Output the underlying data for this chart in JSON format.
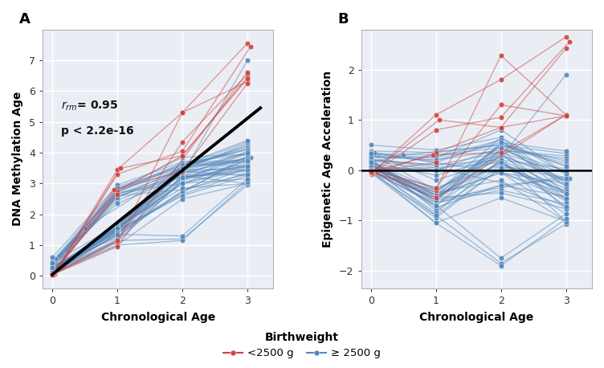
{
  "panel_A_label": "A",
  "panel_B_label": "B",
  "xlabel": "Chronological Age",
  "ylabel_A": "DNA Methylation Age",
  "ylabel_B": "Epigenetic Age Acceleration",
  "legend_title": "Birthweight",
  "legend_low": "<2500 g",
  "legend_high": "≥ 2500 g",
  "color_low": "#CC4444",
  "color_high": "#5588BB",
  "regression_color": "#000000",
  "background_color": "#EAEEF4",
  "grid_color": "#FFFFFF",
  "fig_facecolor": "#FFFFFF",
  "low_bw_subjects": [
    {
      "id": "L1",
      "ages": [
        0.02,
        1.0,
        2.0,
        3.0
      ],
      "dna_age": [
        0.05,
        3.45,
        5.3,
        7.55
      ],
      "eaa": [
        -0.05,
        1.1,
        1.8,
        2.65
      ]
    },
    {
      "id": "L2",
      "ages": [
        0.01,
        1.0,
        2.0,
        3.0
      ],
      "dna_age": [
        0.08,
        2.75,
        3.9,
        6.45
      ],
      "eaa": [
        -0.08,
        0.35,
        0.85,
        2.42
      ]
    },
    {
      "id": "L3",
      "ages": [
        0.03,
        1.0,
        2.0,
        3.05
      ],
      "dna_age": [
        0.06,
        3.3,
        4.05,
        7.45
      ],
      "eaa": [
        -0.06,
        0.8,
        1.05,
        2.55
      ]
    },
    {
      "id": "L4",
      "ages": [
        0.0,
        1.0,
        2.0,
        3.0
      ],
      "dna_age": [
        0.04,
        1.1,
        5.3,
        6.3
      ],
      "eaa": [
        -0.04,
        -0.4,
        2.28,
        1.1
      ]
    },
    {
      "id": "L5",
      "ages": [
        0.01,
        0.95,
        2.0,
        3.0
      ],
      "dna_age": [
        0.03,
        2.8,
        3.4,
        6.25
      ],
      "eaa": [
        -0.03,
        0.3,
        0.35,
        1.1
      ]
    },
    {
      "id": "L6",
      "ages": [
        0.02,
        1.0,
        2.0,
        3.0
      ],
      "dna_age": [
        0.1,
        1.15,
        4.35,
        6.55
      ],
      "eaa": [
        0.0,
        -0.35,
        1.3,
        1.08
      ]
    },
    {
      "id": "L7",
      "ages": [
        0.0,
        1.0,
        3.0
      ],
      "dna_age": [
        0.04,
        0.95,
        6.6
      ],
      "eaa": [
        -0.02,
        -0.55,
        1.1
      ]
    },
    {
      "id": "L8",
      "ages": [
        0.01,
        1.05,
        2.0,
        3.0
      ],
      "dna_age": [
        0.03,
        3.5,
        3.9,
        6.4
      ],
      "eaa": [
        -0.05,
        1.0,
        0.85,
        1.08
      ]
    },
    {
      "id": "L9",
      "ages": [
        0.0,
        1.0
      ],
      "dna_age": [
        0.05,
        2.65
      ],
      "eaa": [
        -0.03,
        0.15
      ]
    }
  ],
  "high_bw_subjects": [
    {
      "id": "H1",
      "ages": [
        0.0,
        0.5,
        2.0,
        3.0
      ],
      "dna_age": [
        0.35,
        1.55,
        3.55,
        4.1
      ],
      "eaa": [
        0.15,
        0.3,
        0.5,
        0.08
      ]
    },
    {
      "id": "H2",
      "ages": [
        0.05,
        1.0,
        2.0,
        3.0
      ],
      "dna_age": [
        0.55,
        2.7,
        3.65,
        3.7
      ],
      "eaa": [
        0.35,
        0.15,
        0.6,
        -0.32
      ]
    },
    {
      "id": "H3",
      "ages": [
        0.0,
        1.0,
        2.0,
        3.0
      ],
      "dna_age": [
        0.1,
        1.5,
        3.2,
        3.55
      ],
      "eaa": [
        0.0,
        -0.55,
        0.15,
        -0.47
      ]
    },
    {
      "id": "H4",
      "ages": [
        0.0,
        1.0,
        2.0,
        3.0
      ],
      "dna_age": [
        0.2,
        1.35,
        3.45,
        3.45
      ],
      "eaa": [
        0.1,
        -0.7,
        0.4,
        -0.57
      ]
    },
    {
      "id": "H5",
      "ages": [
        0.02,
        1.0,
        2.0,
        3.0
      ],
      "dna_age": [
        0.15,
        1.45,
        3.35,
        3.8
      ],
      "eaa": [
        0.05,
        -0.6,
        0.3,
        -0.22
      ]
    },
    {
      "id": "H6",
      "ages": [
        0.0,
        1.0,
        2.0,
        3.0
      ],
      "dna_age": [
        0.08,
        1.55,
        3.55,
        4.15
      ],
      "eaa": [
        -0.02,
        -0.5,
        0.5,
        0.13
      ]
    },
    {
      "id": "H7",
      "ages": [
        0.0,
        1.0,
        2.0,
        3.0
      ],
      "dna_age": [
        0.25,
        2.45,
        3.3,
        7.0
      ],
      "eaa": [
        0.15,
        -0.1,
        0.25,
        1.9
      ]
    },
    {
      "id": "H8",
      "ages": [
        0.0,
        1.0,
        2.0,
        3.0
      ],
      "dna_age": [
        0.18,
        1.6,
        3.7,
        3.75
      ],
      "eaa": [
        0.08,
        -0.45,
        0.65,
        -0.27
      ]
    },
    {
      "id": "H9",
      "ages": [
        0.0,
        1.0,
        2.0,
        3.0
      ],
      "dna_age": [
        0.12,
        1.7,
        3.15,
        3.85
      ],
      "eaa": [
        0.02,
        -0.35,
        0.1,
        -0.17
      ]
    },
    {
      "id": "H10",
      "ages": [
        0.0,
        1.0,
        2.0,
        3.0
      ],
      "dna_age": [
        0.3,
        2.65,
        3.25,
        4.05
      ],
      "eaa": [
        0.2,
        0.1,
        0.2,
        0.03
      ]
    },
    {
      "id": "H11",
      "ages": [
        0.0,
        1.0,
        2.0,
        3.05
      ],
      "dna_age": [
        0.22,
        1.3,
        2.75,
        3.85
      ],
      "eaa": [
        0.12,
        -0.75,
        -0.3,
        -0.17
      ]
    },
    {
      "id": "H12",
      "ages": [
        0.0,
        1.0,
        2.0,
        3.0
      ],
      "dna_age": [
        0.05,
        1.15,
        3.1,
        4.0
      ],
      "eaa": [
        -0.05,
        -0.9,
        0.05,
        -0.02
      ]
    },
    {
      "id": "H13",
      "ages": [
        0.0,
        1.0,
        2.0,
        3.0
      ],
      "dna_age": [
        0.17,
        2.55,
        3.5,
        3.8
      ],
      "eaa": [
        0.07,
        0.0,
        0.45,
        -0.22
      ]
    },
    {
      "id": "H14",
      "ages": [
        0.0,
        1.0,
        2.0,
        3.0
      ],
      "dna_age": [
        0.28,
        1.4,
        2.65,
        3.35
      ],
      "eaa": [
        0.18,
        -0.65,
        -0.4,
        -0.67
      ]
    },
    {
      "id": "H15",
      "ages": [
        0.0,
        1.0,
        2.0,
        3.0
      ],
      "dna_age": [
        0.42,
        1.65,
        3.35,
        3.55
      ],
      "eaa": [
        0.32,
        -0.4,
        0.3,
        -0.47
      ]
    },
    {
      "id": "H16",
      "ages": [
        0.0,
        1.0,
        2.0,
        3.0
      ],
      "dna_age": [
        0.38,
        2.75,
        3.6,
        4.1
      ],
      "eaa": [
        0.28,
        0.2,
        0.55,
        0.08
      ]
    },
    {
      "id": "H17",
      "ages": [
        0.0,
        1.0,
        2.0,
        3.0
      ],
      "dna_age": [
        0.09,
        1.35,
        3.25,
        3.0
      ],
      "eaa": [
        -0.01,
        -0.7,
        0.2,
        -1.02
      ]
    },
    {
      "id": "H18",
      "ages": [
        0.0,
        1.0,
        2.0,
        3.0
      ],
      "dna_age": [
        0.14,
        1.5,
        3.4,
        3.25
      ],
      "eaa": [
        0.04,
        -0.55,
        0.35,
        -0.77
      ]
    },
    {
      "id": "H19",
      "ages": [
        0.0,
        1.0,
        2.0,
        3.0
      ],
      "dna_age": [
        0.48,
        2.9,
        3.55,
        4.2
      ],
      "eaa": [
        0.38,
        0.35,
        0.5,
        0.18
      ]
    },
    {
      "id": "H20",
      "ages": [
        0.0,
        1.0,
        2.0,
        3.0
      ],
      "dna_age": [
        0.33,
        1.25,
        3.15,
        3.6
      ],
      "eaa": [
        0.23,
        -0.8,
        0.1,
        -0.42
      ]
    },
    {
      "id": "H21",
      "ages": [
        0.0,
        1.0,
        2.0,
        3.0
      ],
      "dna_age": [
        0.16,
        1.45,
        2.7,
        3.9
      ],
      "eaa": [
        0.06,
        -0.6,
        -0.35,
        -0.12
      ]
    },
    {
      "id": "H22",
      "ages": [
        0.0,
        1.0,
        2.0,
        3.0
      ],
      "dna_age": [
        0.26,
        1.55,
        3.45,
        4.25
      ],
      "eaa": [
        0.16,
        -0.5,
        0.4,
        0.23
      ]
    },
    {
      "id": "H23",
      "ages": [
        0.0,
        1.0,
        2.0,
        3.0
      ],
      "dna_age": [
        0.11,
        2.6,
        2.8,
        3.3
      ],
      "eaa": [
        0.01,
        0.05,
        -0.25,
        -0.72
      ]
    },
    {
      "id": "H24",
      "ages": [
        0.0,
        1.0,
        2.0,
        3.0
      ],
      "dna_age": [
        0.19,
        1.6,
        3.55,
        3.7
      ],
      "eaa": [
        0.09,
        -0.45,
        0.5,
        -0.32
      ]
    },
    {
      "id": "H25",
      "ages": [
        0.0,
        1.0,
        2.0,
        3.0
      ],
      "dna_age": [
        0.44,
        2.7,
        3.0,
        3.15
      ],
      "eaa": [
        0.34,
        0.15,
        -0.05,
        -0.87
      ]
    },
    {
      "id": "H26",
      "ages": [
        0.0,
        1.0,
        2.0,
        3.0
      ],
      "dna_age": [
        0.13,
        1.2,
        3.25,
        3.65
      ],
      "eaa": [
        0.03,
        -0.85,
        0.2,
        -0.37
      ]
    },
    {
      "id": "H27",
      "ages": [
        0.0,
        1.0,
        2.0,
        3.0
      ],
      "dna_age": [
        0.36,
        2.8,
        3.85,
        3.95
      ],
      "eaa": [
        0.26,
        0.25,
        0.8,
        -0.07
      ]
    },
    {
      "id": "H28",
      "ages": [
        0.0,
        1.0,
        2.0,
        3.0
      ],
      "dna_age": [
        0.21,
        1.5,
        2.6,
        3.25
      ],
      "eaa": [
        0.11,
        -0.55,
        -0.45,
        -0.77
      ]
    },
    {
      "id": "H29",
      "ages": [
        0.0,
        1.0,
        2.0,
        3.0
      ],
      "dna_age": [
        0.07,
        1.4,
        2.75,
        3.5
      ],
      "eaa": [
        -0.03,
        -0.65,
        -0.3,
        -0.52
      ]
    },
    {
      "id": "H30",
      "ages": [
        0.0,
        1.0,
        2.0,
        3.0
      ],
      "dna_age": [
        0.1,
        1.0,
        2.5,
        3.0
      ],
      "eaa": [
        0.0,
        -1.05,
        -0.55,
        -1.02
      ]
    },
    {
      "id": "H31",
      "ages": [
        0.0,
        1.0,
        2.0,
        3.0
      ],
      "dna_age": [
        0.08,
        1.1,
        3.1,
        3.6
      ],
      "eaa": [
        -0.02,
        -0.95,
        0.05,
        -0.42
      ]
    },
    {
      "id": "H32",
      "ages": [
        0.0,
        1.0,
        2.0,
        3.0
      ],
      "dna_age": [
        0.6,
        2.95,
        3.7,
        3.95
      ],
      "eaa": [
        0.5,
        0.4,
        0.65,
        -0.07
      ]
    },
    {
      "id": "H33",
      "ages": [
        0.0,
        1.0,
        2.0,
        3.0
      ],
      "dna_age": [
        0.23,
        1.55,
        3.0,
        3.45
      ],
      "eaa": [
        0.13,
        -0.5,
        -0.05,
        -0.57
      ]
    },
    {
      "id": "H34",
      "ages": [
        0.0,
        1.0,
        2.0,
        3.0
      ],
      "dna_age": [
        0.32,
        2.6,
        3.2,
        3.4
      ],
      "eaa": [
        0.22,
        0.05,
        0.15,
        -0.62
      ]
    },
    {
      "id": "H35",
      "ages": [
        0.0,
        1.0,
        2.0,
        3.0
      ],
      "dna_age": [
        0.27,
        1.65,
        3.45,
        4.3
      ],
      "eaa": [
        0.17,
        -0.4,
        0.4,
        0.28
      ]
    },
    {
      "id": "H36",
      "ages": [
        0.0,
        1.0,
        2.0,
        3.0
      ],
      "dna_age": [
        0.15,
        1.15,
        1.2,
        2.95
      ],
      "eaa": [
        0.05,
        -0.9,
        -1.85,
        -1.07
      ]
    },
    {
      "id": "H37",
      "ages": [
        0.0,
        1.0,
        2.0,
        3.0
      ],
      "dna_age": [
        0.29,
        2.55,
        3.35,
        3.85
      ],
      "eaa": [
        0.19,
        0.0,
        0.3,
        -0.17
      ]
    },
    {
      "id": "H38",
      "ages": [
        0.0,
        1.0,
        2.0,
        3.0
      ],
      "dna_age": [
        0.45,
        2.35,
        3.25,
        3.3
      ],
      "eaa": [
        0.35,
        -0.2,
        0.2,
        -0.72
      ]
    },
    {
      "id": "H39",
      "ages": [
        0.0,
        1.0,
        2.0,
        3.0
      ],
      "dna_age": [
        0.16,
        1.45,
        3.55,
        4.35
      ],
      "eaa": [
        0.06,
        -0.6,
        0.5,
        0.33
      ]
    },
    {
      "id": "H40",
      "ages": [
        0.0,
        1.0,
        2.0,
        3.0
      ],
      "dna_age": [
        0.41,
        2.8,
        3.65,
        3.55
      ],
      "eaa": [
        0.31,
        0.25,
        0.6,
        -0.47
      ]
    },
    {
      "id": "H41",
      "ages": [
        0.0,
        1.0,
        2.0,
        3.0
      ],
      "dna_age": [
        0.19,
        1.6,
        2.85,
        3.0
      ],
      "eaa": [
        0.09,
        -0.45,
        -0.2,
        -1.02
      ]
    },
    {
      "id": "H42",
      "ages": [
        0.0,
        1.0,
        2.0,
        3.0
      ],
      "dna_age": [
        0.05,
        1.0,
        1.15,
        3.05
      ],
      "eaa": [
        -0.05,
        -1.05,
        -1.9,
        -0.97
      ]
    },
    {
      "id": "H43",
      "ages": [
        0.0,
        1.0,
        2.0,
        3.0
      ],
      "dna_age": [
        0.31,
        2.65,
        3.4,
        3.95
      ],
      "eaa": [
        0.21,
        0.1,
        0.35,
        -0.07
      ]
    },
    {
      "id": "H44",
      "ages": [
        0.0,
        1.0,
        2.0,
        3.0
      ],
      "dna_age": [
        0.24,
        1.45,
        3.6,
        4.4
      ],
      "eaa": [
        0.14,
        -0.6,
        0.55,
        0.38
      ]
    },
    {
      "id": "H45",
      "ages": [
        0.0,
        2.0,
        3.0
      ],
      "dna_age": [
        0.14,
        3.0,
        3.75
      ],
      "eaa": [
        0.04,
        -0.05,
        -0.27
      ]
    },
    {
      "id": "H46",
      "ages": [
        0.0,
        1.0,
        2.0,
        3.0
      ],
      "dna_age": [
        0.18,
        1.55,
        3.2,
        3.45
      ],
      "eaa": [
        0.08,
        -0.5,
        0.15,
        -0.57
      ]
    },
    {
      "id": "H47",
      "ages": [
        0.0,
        1.0,
        2.0,
        3.0
      ],
      "dna_age": [
        0.37,
        2.75,
        3.45,
        4.0
      ],
      "eaa": [
        0.27,
        0.2,
        0.4,
        -0.02
      ]
    },
    {
      "id": "H48",
      "ages": [
        0.0,
        1.0,
        2.0
      ],
      "dna_age": [
        0.43,
        2.85,
        3.5
      ],
      "eaa": [
        0.33,
        0.3,
        0.45
      ]
    },
    {
      "id": "H49",
      "ages": [
        0.0,
        1.0,
        2.0,
        3.0
      ],
      "dna_age": [
        0.11,
        1.35,
        1.3,
        3.15
      ],
      "eaa": [
        0.01,
        -0.7,
        -1.75,
        -0.87
      ]
    },
    {
      "id": "H50",
      "ages": [
        0.0,
        1.0,
        2.0,
        3.0
      ],
      "dna_age": [
        0.26,
        1.55,
        3.0,
        3.55
      ],
      "eaa": [
        0.16,
        -0.5,
        -0.05,
        -0.47
      ]
    }
  ],
  "regression_line": {
    "x": [
      0.0,
      3.2
    ],
    "y": [
      0.05,
      5.45
    ]
  },
  "xlim_A": [
    -0.15,
    3.4
  ],
  "ylim_A": [
    -0.4,
    8.0
  ],
  "xlim_B": [
    -0.15,
    3.4
  ],
  "ylim_B": [
    -2.35,
    2.8
  ],
  "scatter_size": 22,
  "scatter_alpha": 0.9,
  "line_alpha": 0.5,
  "line_width": 1.0,
  "marker_edge_width": 0.3,
  "marker_edge_color": "#FFFFFF"
}
